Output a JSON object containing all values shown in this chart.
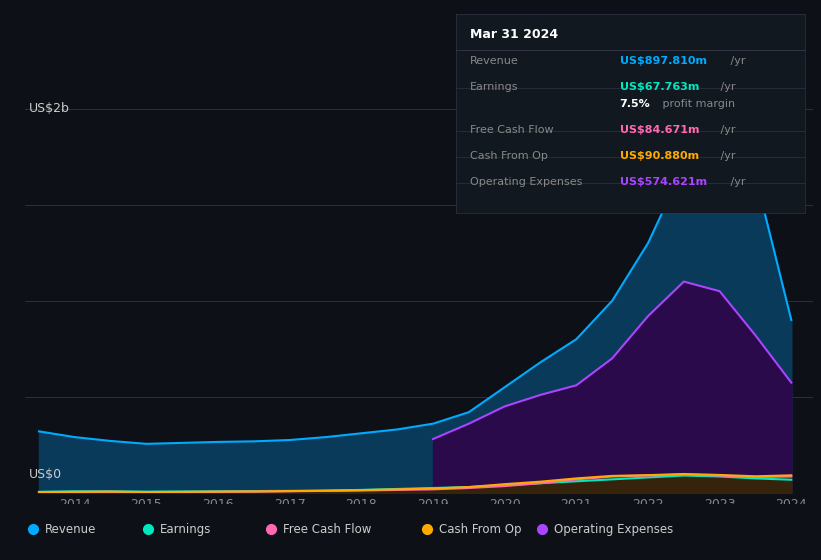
{
  "bg_color": "#0d1117",
  "plot_bg_color": "#0d1117",
  "grid_color": "#2a3040",
  "title_label": "US$2b",
  "zero_label": "US$0",
  "x_years": [
    2013.5,
    2014,
    2014.5,
    2015,
    2015.5,
    2016,
    2016.5,
    2017,
    2017.5,
    2018,
    2018.5,
    2019,
    2019.5,
    2020,
    2020.5,
    2021,
    2021.5,
    2022,
    2022.5,
    2023,
    2023.5,
    2024
  ],
  "revenue": [
    320,
    290,
    270,
    255,
    260,
    265,
    268,
    275,
    290,
    310,
    330,
    360,
    420,
    550,
    680,
    800,
    1000,
    1300,
    1700,
    1900,
    1650,
    900
  ],
  "op_expenses": [
    0,
    0,
    0,
    0,
    0,
    0,
    0,
    0,
    0,
    0,
    0,
    280,
    360,
    450,
    510,
    560,
    700,
    920,
    1100,
    1050,
    820,
    574
  ],
  "earnings": [
    5,
    8,
    8,
    6,
    7,
    8,
    9,
    10,
    11,
    15,
    20,
    25,
    30,
    40,
    50,
    60,
    70,
    80,
    90,
    85,
    75,
    68
  ],
  "free_cash_flow": [
    3,
    4,
    5,
    3,
    4,
    5,
    6,
    8,
    10,
    12,
    15,
    18,
    25,
    35,
    50,
    70,
    85,
    90,
    95,
    90,
    82,
    85
  ],
  "cash_from_op": [
    4,
    5,
    6,
    4,
    5,
    6,
    7,
    9,
    11,
    14,
    18,
    22,
    30,
    45,
    58,
    75,
    88,
    92,
    98,
    93,
    86,
    91
  ],
  "revenue_color": "#00aaff",
  "revenue_fill": "#0a3a5a",
  "earnings_color": "#00e8c0",
  "earnings_fill": "#003a35",
  "free_cash_flow_color": "#ff69b4",
  "free_cash_flow_fill": "#3a0a25",
  "cash_from_op_color": "#ffaa00",
  "cash_from_op_fill": "#3a2a00",
  "op_expenses_color": "#aa44ff",
  "op_expenses_fill": "#2a0a4a",
  "xlim": [
    2013.3,
    2024.3
  ],
  "ylim": [
    0,
    2100
  ],
  "yticks": [
    0,
    500,
    1000,
    1500,
    2000
  ],
  "xticks": [
    2014,
    2015,
    2016,
    2017,
    2018,
    2019,
    2020,
    2021,
    2022,
    2023,
    2024
  ],
  "info_box": {
    "date": "Mar 31 2024",
    "rows": [
      {
        "label": "Revenue",
        "value": "US$897.810m",
        "value_color": "#00aaff",
        "suffix": " /yr"
      },
      {
        "label": "Earnings",
        "value": "US$67.763m",
        "value_color": "#00e8c0",
        "suffix": " /yr"
      },
      {
        "label": "",
        "value": "7.5%",
        "value_color": "#ffffff",
        "suffix": " profit margin"
      },
      {
        "label": "Free Cash Flow",
        "value": "US$84.671m",
        "value_color": "#ff69b4",
        "suffix": " /yr"
      },
      {
        "label": "Cash From Op",
        "value": "US$90.880m",
        "value_color": "#ffaa00",
        "suffix": " /yr"
      },
      {
        "label": "Operating Expenses",
        "value": "US$574.621m",
        "value_color": "#aa44ff",
        "suffix": " /yr"
      }
    ]
  },
  "legend": [
    {
      "label": "Revenue",
      "color": "#00aaff"
    },
    {
      "label": "Earnings",
      "color": "#00e8c0"
    },
    {
      "label": "Free Cash Flow",
      "color": "#ff69b4"
    },
    {
      "label": "Cash From Op",
      "color": "#ffaa00"
    },
    {
      "label": "Operating Expenses",
      "color": "#aa44ff"
    }
  ],
  "box_facecolor": "#111820",
  "divider_color": "#333344",
  "label_color": "#888888",
  "tick_color": "#888888",
  "text_color": "#cccccc"
}
